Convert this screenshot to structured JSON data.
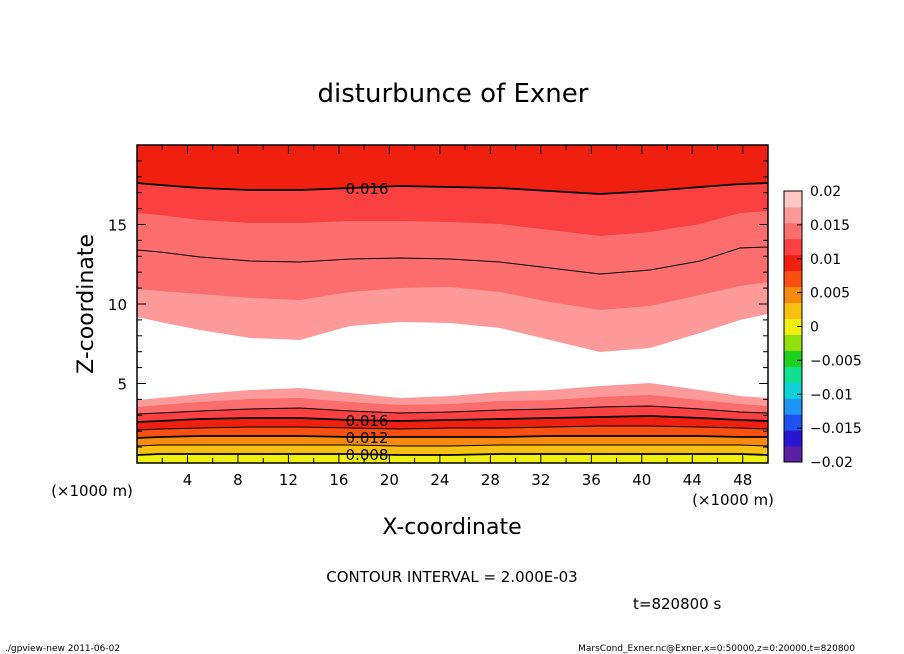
{
  "chart_data": {
    "type": "contour",
    "title": "disturbunce of Exner",
    "xlabel": "X-coordinate",
    "ylabel": "Z-coordinate",
    "x_unit_note": "(×1000 m)",
    "y_unit_note": "(×1000 m)",
    "xlim": [
      0,
      50
    ],
    "ylim": [
      0,
      20
    ],
    "x_ticks": [
      4,
      8,
      12,
      16,
      20,
      24,
      28,
      32,
      36,
      40,
      44,
      48
    ],
    "y_ticks": [
      5,
      10,
      15
    ],
    "contour_interval_label": "CONTOUR INTERVAL = 2.000E-03",
    "time_label": "t=820800 s",
    "contour_labels": [
      "0.016",
      "0.016",
      "0.012",
      "0.008"
    ],
    "colorbar": {
      "tick_labels": [
        "0.02",
        "0.015",
        "0.01",
        "0.005",
        "0",
        "−0.005",
        "−0.01",
        "−0.015",
        "−0.02"
      ],
      "colors": [
        "#5a1fa3",
        "#2a15d0",
        "#1f50f0",
        "#1f95f5",
        "#10d0d8",
        "#10e090",
        "#20d020",
        "#90e010",
        "#f0f010",
        "#f8c010",
        "#f88a10",
        "#f85010",
        "#f02010",
        "#fa4040",
        "#fc6e6e",
        "#ff9a9a",
        "#ffc6c6"
      ]
    },
    "bands": [
      {
        "level": "0.006",
        "color": "#f0f010"
      },
      {
        "level": "0.008",
        "color": "#f8c010"
      },
      {
        "level": "0.010",
        "color": "#f88a10"
      },
      {
        "level": "0.012",
        "color": "#f85010"
      },
      {
        "level": "0.014",
        "color": "#f02010"
      },
      {
        "level": "0.016",
        "color": "#fa4040"
      },
      {
        "level": "0.018",
        "color": "#fc6e6e"
      },
      {
        "level": "0.020",
        "color": "#ff9a9a"
      }
    ]
  },
  "footer": {
    "left": "./gpview-new  2011-06-02",
    "right": "MarsCond_Exner.nc@Exner,x=0:50000,z=0:20000,t=820800"
  }
}
